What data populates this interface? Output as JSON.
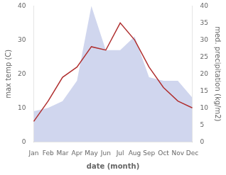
{
  "chart_data": {
    "type": "line",
    "xlabel": "date (month)",
    "ylabel": "max temp (C)",
    "y2label": "med. precipitation (kg/m2)",
    "categories": [
      "Jan",
      "Feb",
      "Mar",
      "Apr",
      "May",
      "Jun",
      "Jul",
      "Aug",
      "Sep",
      "Oct",
      "Nov",
      "Dec"
    ],
    "series": [
      {
        "type": "area",
        "color": "#c0c8e8",
        "axis": "y2",
        "values": [
          9,
          10,
          12,
          18,
          40,
          27,
          27,
          31,
          19,
          18,
          18,
          13
        ]
      },
      {
        "type": "line",
        "color": "#b03030",
        "values": [
          6,
          12,
          19,
          22,
          28,
          27,
          35,
          30,
          22,
          16,
          12,
          10
        ]
      }
    ],
    "ylim": [
      0,
      40
    ],
    "yticks": [
      0,
      10,
      20,
      30,
      40
    ],
    "y2lim": [
      0,
      40
    ],
    "y2ticks": [
      0,
      5,
      10,
      15,
      20,
      25,
      30,
      35,
      40
    ],
    "grid": false
  }
}
